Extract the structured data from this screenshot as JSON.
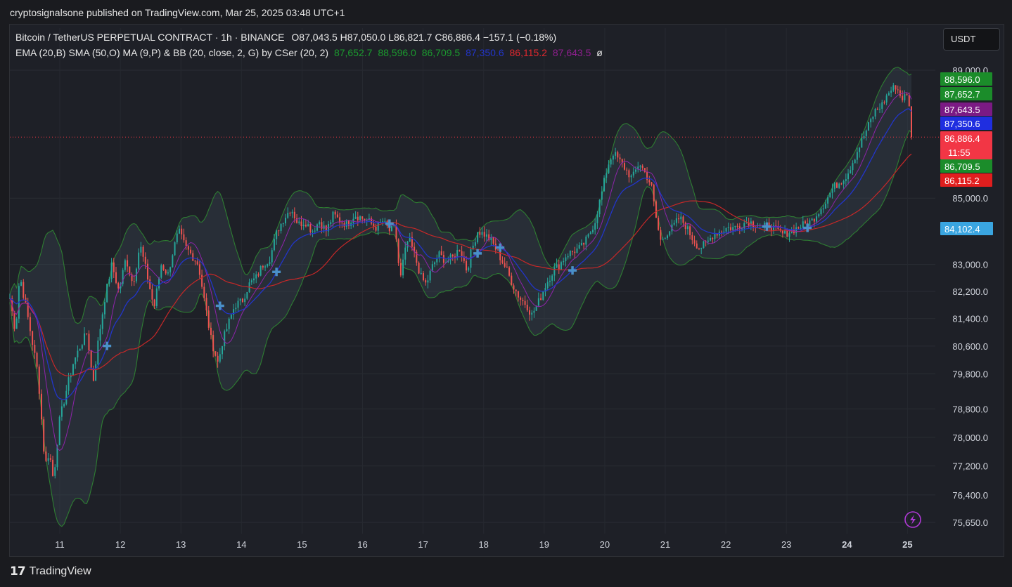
{
  "publisher_line": "cryptosignalsone published on TradingView.com, Mar 25, 2025 03:48 UTC+1",
  "header": {
    "symbol": "Bitcoin / TetherUS PERPETUAL CONTRACT · 1h · BINANCE",
    "ohlc": "O87,043.5  H87,050.0  L86,821.7  C86,886.4  −157.1 (−0.18%)",
    "indicator_title": "EMA (20,B) SMA (50,O) MA (9,P) & BB (20, close, 2, G) by CSer (20, 2)",
    "indicator_values": [
      {
        "text": "87,652.7",
        "color": "#1b9a2e"
      },
      {
        "text": "88,596.0",
        "color": "#1b9a2e"
      },
      {
        "text": "86,709.5",
        "color": "#1b9a2e"
      },
      {
        "text": "87,350.6",
        "color": "#2235c9"
      },
      {
        "text": "86,115.2",
        "color": "#e0282e"
      },
      {
        "text": "87,643.5",
        "color": "#8e1f8e"
      }
    ],
    "indicator_suffix": "ø"
  },
  "currency_button": "USDT",
  "footer_brand": "TradingView",
  "chart_data": {
    "type": "candlestick",
    "symbol": "BTCUSDT.P",
    "interval": "1h",
    "x_tick_labels": [
      "11",
      "12",
      "13",
      "14",
      "15",
      "16",
      "17",
      "18",
      "19",
      "20",
      "21",
      "22",
      "23",
      "24",
      "25"
    ],
    "y_tick_labels": [
      89000,
      85000,
      83000,
      82200,
      81400,
      80600,
      79800,
      78800,
      78000,
      77200,
      76400,
      75650
    ],
    "y_tick_text": [
      "89,000.0",
      "85,000.0",
      "83,000.0",
      "82,200.0",
      "81,400.0",
      "80,600.0",
      "79,800.0",
      "78,800.0",
      "78,000.0",
      "77,200.0",
      "76,400.0",
      "75,650.0"
    ],
    "ylim": [
      75400,
      89200
    ],
    "y_scale": "log",
    "grid": true,
    "price_badges": [
      {
        "text": "88,596.0",
        "color": "#1b8c2a"
      },
      {
        "text": "87,652.7",
        "color": "#1b8c2a"
      },
      {
        "text": "87,643.5",
        "color": "#7b1a84"
      },
      {
        "text": "87,350.6",
        "color": "#1f2ee0"
      },
      {
        "text": "86,886.4",
        "color": "#f23645",
        "sub": "11:55"
      },
      {
        "text": "86,709.5",
        "color": "#1b8c2a"
      },
      {
        "text": "86,115.2",
        "color": "#e01e1e"
      },
      {
        "text": "84,102.4",
        "color": "#3aa5e0"
      }
    ],
    "last_price": 86886.4,
    "series_colors": {
      "up": "#26a69a",
      "down": "#ef5350",
      "ema20": "#2235c9",
      "sma50": "#c62828",
      "ma9": "#8e24aa",
      "bb": "#2e7d32"
    },
    "close_anchors": [
      [
        0,
        82000
      ],
      [
        8,
        81000
      ],
      [
        14,
        82700
      ],
      [
        25,
        81500
      ],
      [
        40,
        79800
      ],
      [
        50,
        77200
      ],
      [
        56,
        77600
      ],
      [
        62,
        76800
      ],
      [
        70,
        78400
      ],
      [
        80,
        79300
      ],
      [
        90,
        80100
      ],
      [
        100,
        80600
      ],
      [
        110,
        81000
      ],
      [
        118,
        79500
      ],
      [
        126,
        80800
      ],
      [
        135,
        82000
      ],
      [
        145,
        83000
      ],
      [
        155,
        82200
      ],
      [
        165,
        83200
      ],
      [
        175,
        82400
      ],
      [
        185,
        83600
      ],
      [
        195,
        82700
      ],
      [
        205,
        81700
      ],
      [
        215,
        83000
      ],
      [
        225,
        82700
      ],
      [
        232,
        83400
      ],
      [
        240,
        84000
      ],
      [
        250,
        83500
      ],
      [
        258,
        83300
      ],
      [
        268,
        83000
      ],
      [
        276,
        82000
      ],
      [
        286,
        80800
      ],
      [
        296,
        80100
      ],
      [
        302,
        80700
      ],
      [
        310,
        81200
      ],
      [
        320,
        81800
      ],
      [
        330,
        81900
      ],
      [
        340,
        82400
      ],
      [
        350,
        82600
      ],
      [
        360,
        83000
      ],
      [
        370,
        83200
      ],
      [
        380,
        84000
      ],
      [
        390,
        84400
      ],
      [
        400,
        84700
      ],
      [
        410,
        84200
      ],
      [
        420,
        84300
      ],
      [
        430,
        84000
      ],
      [
        440,
        84300
      ],
      [
        450,
        84000
      ],
      [
        460,
        84500
      ],
      [
        470,
        84300
      ],
      [
        480,
        84200
      ],
      [
        490,
        84500
      ],
      [
        500,
        84400
      ],
      [
        510,
        84300
      ],
      [
        520,
        84100
      ],
      [
        530,
        84300
      ],
      [
        540,
        84000
      ],
      [
        548,
        84100
      ],
      [
        555,
        82500
      ],
      [
        560,
        83200
      ],
      [
        567,
        83800
      ],
      [
        575,
        83300
      ],
      [
        585,
        82600
      ],
      [
        592,
        82400
      ],
      [
        600,
        82900
      ],
      [
        610,
        83300
      ],
      [
        620,
        83100
      ],
      [
        630,
        83200
      ],
      [
        640,
        83500
      ],
      [
        650,
        82800
      ],
      [
        655,
        83300
      ],
      [
        665,
        84000
      ],
      [
        675,
        83900
      ],
      [
        685,
        83700
      ],
      [
        695,
        83300
      ],
      [
        705,
        82900
      ],
      [
        715,
        82400
      ],
      [
        725,
        82000
      ],
      [
        735,
        81800
      ],
      [
        742,
        81500
      ],
      [
        752,
        81900
      ],
      [
        762,
        82400
      ],
      [
        772,
        82800
      ],
      [
        782,
        83000
      ],
      [
        792,
        83300
      ],
      [
        802,
        83400
      ],
      [
        812,
        83500
      ],
      [
        822,
        83800
      ],
      [
        832,
        84300
      ],
      [
        842,
        85200
      ],
      [
        850,
        86000
      ],
      [
        858,
        86400
      ],
      [
        865,
        86200
      ],
      [
        875,
        85900
      ],
      [
        885,
        85600
      ],
      [
        895,
        86100
      ],
      [
        905,
        85700
      ],
      [
        912,
        85400
      ],
      [
        918,
        84500
      ],
      [
        925,
        83700
      ],
      [
        932,
        83900
      ],
      [
        942,
        84100
      ],
      [
        952,
        84400
      ],
      [
        960,
        84200
      ],
      [
        970,
        83800
      ],
      [
        980,
        83500
      ],
      [
        990,
        83600
      ],
      [
        1000,
        83900
      ],
      [
        1010,
        84000
      ],
      [
        1020,
        84100
      ],
      [
        1030,
        84100
      ],
      [
        1040,
        84200
      ],
      [
        1050,
        84300
      ],
      [
        1060,
        84200
      ],
      [
        1070,
        84100
      ],
      [
        1080,
        84200
      ],
      [
        1090,
        84000
      ],
      [
        1100,
        83900
      ],
      [
        1110,
        84000
      ],
      [
        1120,
        84100
      ],
      [
        1130,
        84200
      ],
      [
        1140,
        84300
      ],
      [
        1150,
        84600
      ],
      [
        1160,
        84900
      ],
      [
        1170,
        85300
      ],
      [
        1180,
        85500
      ],
      [
        1190,
        85700
      ],
      [
        1200,
        86200
      ],
      [
        1210,
        86700
      ],
      [
        1220,
        87200
      ],
      [
        1230,
        87700
      ],
      [
        1240,
        87900
      ],
      [
        1250,
        88300
      ],
      [
        1260,
        88500
      ],
      [
        1268,
        88100
      ],
      [
        1275,
        88200
      ],
      [
        1282,
        87700
      ],
      [
        1288,
        87300
      ],
      [
        1294,
        86886.4
      ]
    ]
  }
}
